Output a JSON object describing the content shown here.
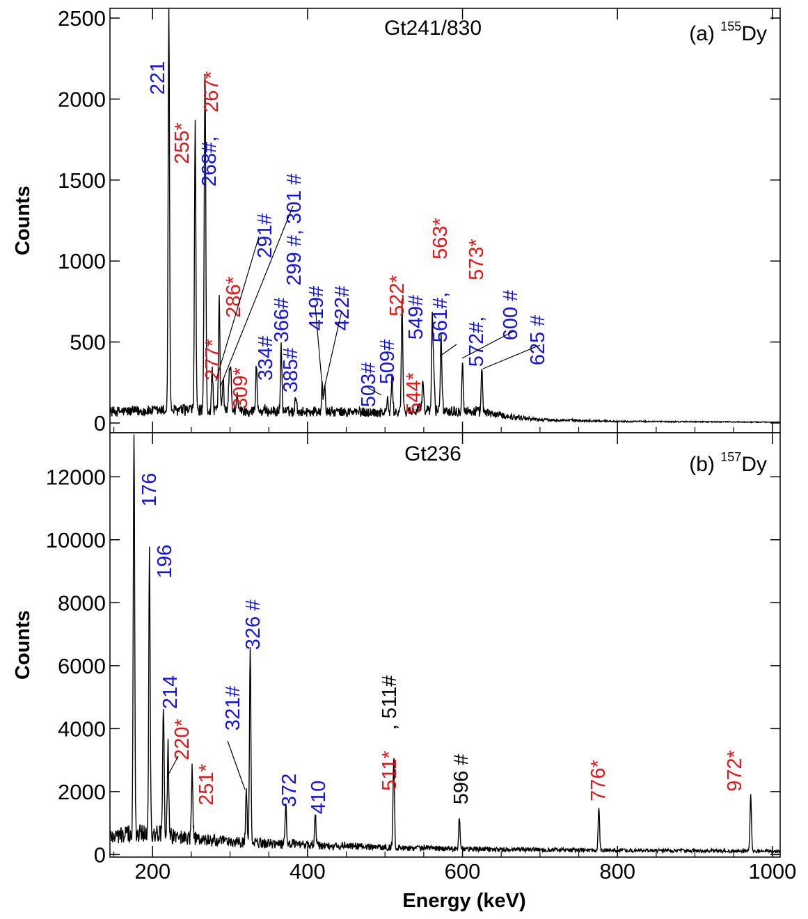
{
  "figure": {
    "xlabel": "Energy (keV)",
    "colors": {
      "blue": "#1111ee",
      "red": "#ee1111",
      "black": "#000000",
      "trace": "#000000"
    }
  },
  "chart_data": [
    {
      "type": "line",
      "panel_id": "a",
      "title": "Gt241/830",
      "panel_label_prefix": "(a) ",
      "panel_label_mass": "155",
      "panel_label_element": "Dy",
      "ylabel": "Counts",
      "xlim": [
        145,
        1010
      ],
      "ylim": [
        -60,
        2560
      ],
      "xticks": [
        200,
        400,
        600,
        800,
        1000
      ],
      "xtick_labels": [
        "200",
        "400",
        "600",
        "800",
        "1000"
      ],
      "yticks": [
        0,
        500,
        1000,
        1500,
        2000,
        2500
      ],
      "ytick_labels": [
        "0",
        "500",
        "1000",
        "1500",
        "2000",
        "2500"
      ],
      "x_tick_labels_visible": false,
      "background": [
        {
          "x": 145,
          "y": 70
        },
        {
          "x": 250,
          "y": 80
        },
        {
          "x": 300,
          "y": 75
        },
        {
          "x": 400,
          "y": 70
        },
        {
          "x": 500,
          "y": 65
        },
        {
          "x": 560,
          "y": 80
        },
        {
          "x": 620,
          "y": 70
        },
        {
          "x": 660,
          "y": 40
        },
        {
          "x": 700,
          "y": 20
        },
        {
          "x": 800,
          "y": 10
        },
        {
          "x": 1010,
          "y": 5
        }
      ],
      "peaks": [
        {
          "x": 221,
          "y": 2560,
          "label": "221",
          "color": "blue"
        },
        {
          "x": 255,
          "y": 1850,
          "label": "255*",
          "color": "red"
        },
        {
          "x": 267,
          "y": 900,
          "label": "267*",
          "color": "red"
        },
        {
          "x": 268,
          "y": 1640,
          "label": "268#,",
          "color": "blue"
        },
        {
          "x": 277,
          "y": 330,
          "label": "277*",
          "color": "red"
        },
        {
          "x": 286,
          "y": 780,
          "label": "286*",
          "color": "red"
        },
        {
          "x": 291,
          "y": 280,
          "label": "291#",
          "color": "blue"
        },
        {
          "x": 299,
          "y": 300,
          "label": "299 #, 301 #",
          "color": "blue"
        },
        {
          "x": 301,
          "y": 320,
          "label": "",
          "color": "blue"
        },
        {
          "x": 309,
          "y": 200,
          "label": "309*",
          "color": "red"
        },
        {
          "x": 334,
          "y": 370,
          "label": "334#",
          "color": "blue"
        },
        {
          "x": 366,
          "y": 490,
          "label": "366#",
          "color": "blue"
        },
        {
          "x": 385,
          "y": 180,
          "label": "385#",
          "color": "blue"
        },
        {
          "x": 419,
          "y": 230,
          "label": "419#",
          "color": "blue"
        },
        {
          "x": 422,
          "y": 230,
          "label": "422#",
          "color": "blue"
        },
        {
          "x": 503,
          "y": 150,
          "label": "503#",
          "color": "blue"
        },
        {
          "x": 509,
          "y": 300,
          "label": "509#",
          "color": "blue"
        },
        {
          "x": 522,
          "y": 750,
          "label": "522*",
          "color": "red"
        },
        {
          "x": 544,
          "y": 120,
          "label": "544*",
          "color": "red"
        },
        {
          "x": 549,
          "y": 260,
          "label": "549#",
          "color": "blue"
        },
        {
          "x": 561,
          "y": 640,
          "label": "561#,",
          "color": "blue"
        },
        {
          "x": 563,
          "y": 310,
          "label": "563*",
          "color": "red"
        },
        {
          "x": 572,
          "y": 370,
          "label": "572#,",
          "color": "blue"
        },
        {
          "x": 573,
          "y": 300,
          "label": "573*",
          "color": "red"
        },
        {
          "x": 600,
          "y": 380,
          "label": "600 #",
          "color": "blue"
        },
        {
          "x": 625,
          "y": 330,
          "label": "625 #",
          "color": "blue"
        }
      ]
    },
    {
      "type": "line",
      "panel_id": "b",
      "title": "Gt236",
      "panel_label_prefix": "(b) ",
      "panel_label_mass": "157",
      "panel_label_element": "Dy",
      "ylabel": "Counts",
      "xlim": [
        145,
        1010
      ],
      "ylim": [
        -80,
        13400
      ],
      "xticks": [
        200,
        400,
        600,
        800,
        1000
      ],
      "xtick_labels": [
        "200",
        "400",
        "600",
        "800",
        "1000"
      ],
      "yticks": [
        0,
        2000,
        4000,
        6000,
        8000,
        10000,
        12000
      ],
      "ytick_labels": [
        "0",
        "2000",
        "4000",
        "6000",
        "8000",
        "10000",
        "12000"
      ],
      "x_tick_labels_visible": true,
      "background": [
        {
          "x": 145,
          "y": 600
        },
        {
          "x": 200,
          "y": 700
        },
        {
          "x": 250,
          "y": 500
        },
        {
          "x": 300,
          "y": 400
        },
        {
          "x": 400,
          "y": 300
        },
        {
          "x": 500,
          "y": 230
        },
        {
          "x": 600,
          "y": 180
        },
        {
          "x": 700,
          "y": 150
        },
        {
          "x": 800,
          "y": 130
        },
        {
          "x": 1010,
          "y": 110
        }
      ],
      "peaks": [
        {
          "x": 176,
          "y": 13400,
          "label": "176",
          "color": "blue"
        },
        {
          "x": 196,
          "y": 9700,
          "label": "196",
          "color": "blue"
        },
        {
          "x": 214,
          "y": 4700,
          "label": "214",
          "color": "blue"
        },
        {
          "x": 220,
          "y": 3400,
          "label": "220*",
          "color": "red"
        },
        {
          "x": 251,
          "y": 2700,
          "label": "251*",
          "color": "red"
        },
        {
          "x": 321,
          "y": 2100,
          "label": "321#",
          "color": "blue"
        },
        {
          "x": 326,
          "y": 6500,
          "label": "326 #",
          "color": "blue"
        },
        {
          "x": 372,
          "y": 1700,
          "label": "372",
          "color": "blue"
        },
        {
          "x": 410,
          "y": 1300,
          "label": "410",
          "color": "blue"
        },
        {
          "x": 511,
          "y": 1700,
          "label": "511*",
          "color": "red"
        },
        {
          "x": 511.5,
          "y": 1700,
          "label": ", 511#",
          "color": "black"
        },
        {
          "x": 596,
          "y": 1200,
          "label": "596 #",
          "color": "black"
        },
        {
          "x": 776,
          "y": 1500,
          "label": "776*",
          "color": "red"
        },
        {
          "x": 972,
          "y": 1900,
          "label": "972*",
          "color": "red"
        }
      ]
    }
  ]
}
